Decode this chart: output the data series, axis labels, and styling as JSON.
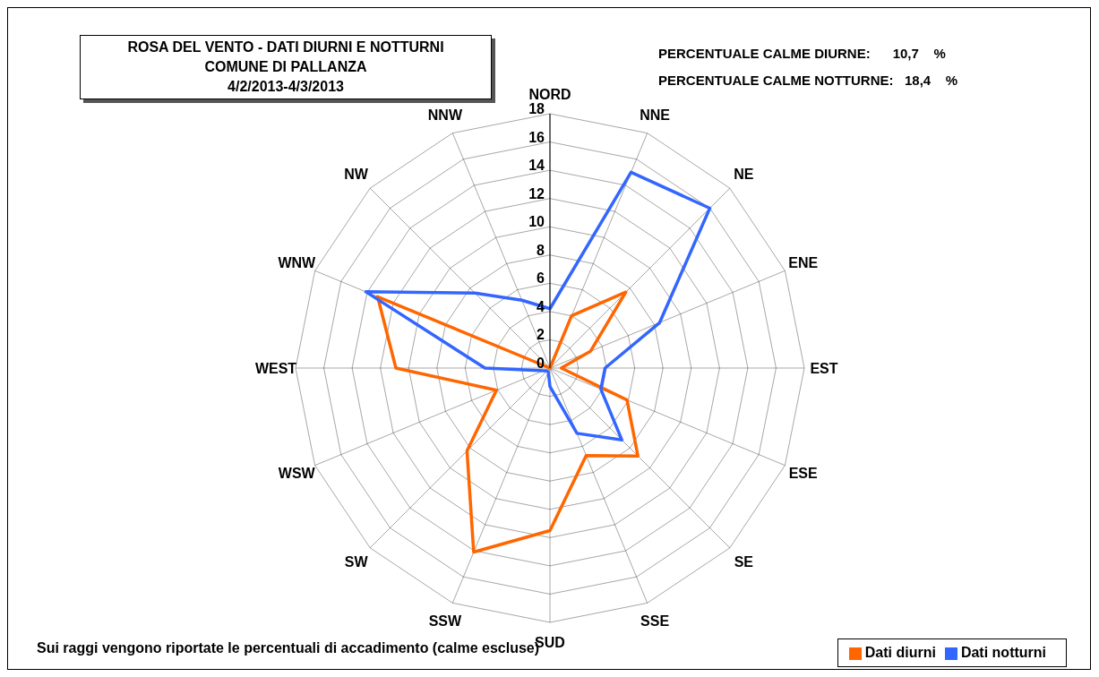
{
  "chart_data": {
    "type": "radar",
    "title": "ROSA DEL VENTO - DATI DIURNI E NOTTURNI\nCOMUNE DI PALLANZA\n4/2/2013-4/3/2013",
    "categories": [
      "NORD",
      "NNE",
      "NE",
      "ENE",
      "EST",
      "ESE",
      "SE",
      "SSE",
      "SUD",
      "SSW",
      "SW",
      "WSW",
      "WEST",
      "WNW",
      "NW",
      "NNW"
    ],
    "series": [
      {
        "name": "Dati diurni",
        "color": "#ff6600",
        "values": [
          0,
          4.0,
          7.6,
          3.1,
          0.8,
          5.9,
          8.8,
          6.7,
          11.5,
          14.1,
          8.3,
          4.1,
          10.9,
          13.2,
          0,
          0
        ]
      },
      {
        "name": "Dati notturni",
        "color": "#3366ff",
        "values": [
          4.2,
          15.0,
          16.0,
          8.4,
          3.9,
          3.9,
          7.2,
          5.0,
          1.3,
          0.3,
          0.3,
          0.5,
          4.6,
          14.1,
          7.5,
          5.2
        ]
      }
    ],
    "ylim": [
      0,
      18
    ],
    "yticks": [
      0,
      2,
      4,
      6,
      8,
      10,
      12,
      14,
      16,
      18
    ],
    "grid": true,
    "legend": "bottom right",
    "marker": "none",
    "line_style": "solid",
    "annotations": [
      "PERCENTUALE CALME DIURNE:      10,7    %",
      "PERCENTUALE CALME NOTTURNE:   18,4    %",
      "Sui raggi vengono riportate le percentuali di accadimento (calme escluse)"
    ]
  }
}
